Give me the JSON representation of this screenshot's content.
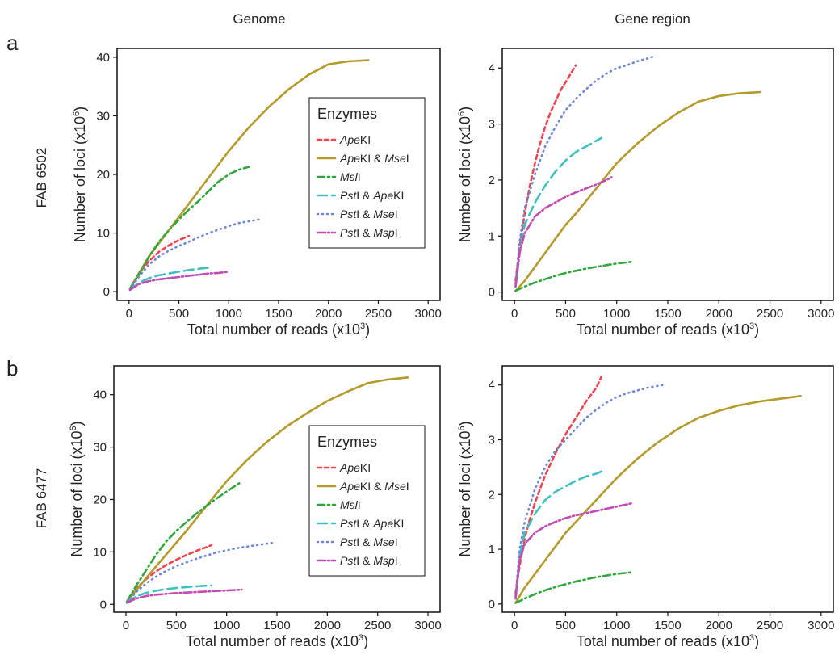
{
  "columns": [
    "Genome",
    "Gene  region"
  ],
  "rows": [
    {
      "letter": "a",
      "label": "FAB 6502"
    },
    {
      "letter": "b",
      "label": "FAB 6477"
    }
  ],
  "legend": {
    "title": "Enzymes",
    "entries": [
      {
        "parts": [
          [
            "Ape",
            true
          ],
          [
            "KI",
            false
          ]
        ],
        "color": "#f0434f",
        "dash": "5,4"
      },
      {
        "parts": [
          [
            "Ape",
            true
          ],
          [
            "KI & ",
            false
          ],
          [
            "Mse",
            true
          ],
          [
            "I",
            false
          ]
        ],
        "color": "#b39a2b",
        "dash": ""
      },
      {
        "parts": [
          [
            "Msl",
            true
          ],
          [
            "I",
            false
          ]
        ],
        "color": "#31a63b",
        "dash": "9,4,2,4"
      },
      {
        "parts": [
          [
            "Pst",
            true
          ],
          [
            "I & ",
            false
          ],
          [
            "Ape",
            true
          ],
          [
            "KI",
            false
          ]
        ],
        "color": "#3fc0c0",
        "dash": "12,6"
      },
      {
        "parts": [
          [
            "Pst",
            true
          ],
          [
            "I & ",
            false
          ],
          [
            "Mse",
            true
          ],
          [
            "I",
            false
          ]
        ],
        "color": "#6e86d6",
        "dash": "1,5"
      },
      {
        "parts": [
          [
            "Pst",
            true
          ],
          [
            "I & ",
            false
          ],
          [
            "Msp",
            true
          ],
          [
            "I",
            false
          ]
        ],
        "color": "#c24ab3",
        "dash": "10,3,2,3"
      }
    ]
  },
  "chart_data": [
    {
      "type": "line",
      "panel": "a-genome",
      "xlabel": "Total number of reads (x10^3)",
      "ylabel": "Number of loci (x10^6)",
      "xlim": [
        -120,
        3120
      ],
      "ylim": [
        -1.5,
        41.5
      ],
      "xticks": [
        0,
        500,
        1000,
        1500,
        2000,
        2500,
        3000
      ],
      "yticks": [
        0,
        10,
        20,
        30,
        40
      ],
      "legend": true,
      "series": [
        {
          "name": "ApeKI",
          "x": [
            10,
            100,
            200,
            300,
            400,
            500,
            600
          ],
          "y": [
            0.5,
            3.2,
            5.2,
            6.8,
            7.9,
            8.8,
            9.5
          ]
        },
        {
          "name": "ApeKI & MseI",
          "x": [
            10,
            200,
            400,
            600,
            800,
            1000,
            1200,
            1400,
            1600,
            1800,
            2000,
            2200,
            2400
          ],
          "y": [
            0.5,
            6,
            10.5,
            15,
            19.5,
            24,
            28,
            31.5,
            34.5,
            37,
            38.8,
            39.3,
            39.5
          ]
        },
        {
          "name": "MslI",
          "x": [
            10,
            100,
            200,
            300,
            400,
            500,
            600,
            700,
            800,
            900,
            1000,
            1100,
            1200
          ],
          "y": [
            0.5,
            3,
            6,
            8.5,
            10.5,
            12.3,
            14,
            15.5,
            17.2,
            18.8,
            20,
            20.8,
            21.3
          ]
        },
        {
          "name": "PstI & ApeKI",
          "x": [
            10,
            100,
            200,
            300,
            400,
            500,
            600,
            700,
            800
          ],
          "y": [
            0.3,
            1.5,
            2.3,
            2.8,
            3.1,
            3.4,
            3.7,
            3.9,
            4.1
          ]
        },
        {
          "name": "PstI & MseI",
          "x": [
            10,
            100,
            200,
            300,
            400,
            500,
            600,
            700,
            800,
            900,
            1000,
            1100,
            1200,
            1300
          ],
          "y": [
            0.4,
            2.6,
            4.6,
            6,
            7,
            7.8,
            8.5,
            9.3,
            10,
            10.6,
            11.2,
            11.7,
            12,
            12.3
          ]
        },
        {
          "name": "PstI & MspI",
          "x": [
            10,
            100,
            200,
            300,
            400,
            500,
            600,
            700,
            800,
            900,
            1000
          ],
          "y": [
            0.3,
            1.3,
            1.8,
            2.1,
            2.3,
            2.5,
            2.7,
            2.9,
            3.1,
            3.2,
            3.4
          ]
        }
      ]
    },
    {
      "type": "line",
      "panel": "a-gene-region",
      "xlabel": "Total number of reads (x10^3)",
      "ylabel": "Number of loci (x10^6)",
      "xlim": [
        -120,
        3120
      ],
      "ylim": [
        -0.15,
        4.35
      ],
      "xticks": [
        0,
        500,
        1000,
        1500,
        2000,
        2500,
        3000
      ],
      "yticks": [
        0,
        1,
        2,
        3,
        4
      ],
      "legend": false,
      "series": [
        {
          "name": "ApeKI",
          "x": [
            10,
            50,
            100,
            150,
            200,
            250,
            300,
            350,
            400,
            450,
            500,
            550,
            600
          ],
          "y": [
            0.2,
            0.8,
            1.4,
            1.9,
            2.3,
            2.65,
            2.95,
            3.2,
            3.4,
            3.6,
            3.75,
            3.9,
            4.05
          ]
        },
        {
          "name": "ApeKI & MseI",
          "x": [
            10,
            100,
            200,
            300,
            400,
            500,
            600,
            800,
            1000,
            1200,
            1400,
            1600,
            1800,
            2000,
            2200,
            2400
          ],
          "y": [
            0.02,
            0.2,
            0.45,
            0.7,
            0.95,
            1.2,
            1.4,
            1.85,
            2.3,
            2.65,
            2.95,
            3.2,
            3.4,
            3.5,
            3.55,
            3.57
          ]
        },
        {
          "name": "MslI",
          "x": [
            10,
            100,
            200,
            300,
            400,
            500,
            600,
            700,
            800,
            900,
            1000,
            1100,
            1150
          ],
          "y": [
            0.02,
            0.1,
            0.17,
            0.23,
            0.29,
            0.34,
            0.38,
            0.42,
            0.45,
            0.48,
            0.51,
            0.53,
            0.54
          ]
        },
        {
          "name": "PstI & ApeKI",
          "x": [
            10,
            50,
            100,
            200,
            300,
            400,
            500,
            600,
            700,
            800,
            850
          ],
          "y": [
            0.1,
            0.7,
            1.2,
            1.6,
            1.9,
            2.15,
            2.35,
            2.5,
            2.6,
            2.7,
            2.75
          ]
        },
        {
          "name": "PstI & MseI",
          "x": [
            10,
            50,
            100,
            200,
            300,
            400,
            500,
            600,
            700,
            800,
            900,
            1000,
            1100,
            1200,
            1300,
            1350
          ],
          "y": [
            0.15,
            0.9,
            1.5,
            2.1,
            2.6,
            2.95,
            3.25,
            3.45,
            3.62,
            3.78,
            3.9,
            4.0,
            4.05,
            4.12,
            4.17,
            4.2
          ]
        },
        {
          "name": "PstI & MspI",
          "x": [
            10,
            50,
            100,
            200,
            300,
            400,
            500,
            600,
            700,
            800,
            900,
            950
          ],
          "y": [
            0.1,
            0.7,
            1.05,
            1.35,
            1.5,
            1.6,
            1.7,
            1.78,
            1.85,
            1.92,
            2.0,
            2.05
          ]
        }
      ]
    },
    {
      "type": "line",
      "panel": "b-genome",
      "xlabel": "Total number of reads (x10^3)",
      "ylabel": "Number of loci (x10^6)",
      "xlim": [
        -120,
        3120
      ],
      "ylim": [
        -1.5,
        45.5
      ],
      "xticks": [
        0,
        500,
        1000,
        1500,
        2000,
        2500,
        3000
      ],
      "yticks": [
        0,
        10,
        20,
        30,
        40
      ],
      "legend": true,
      "series": [
        {
          "name": "ApeKI",
          "x": [
            10,
            100,
            200,
            300,
            400,
            500,
            600,
            700,
            800,
            850
          ],
          "y": [
            0.5,
            3,
            4.8,
            6.3,
            7.5,
            8.5,
            9.4,
            10.2,
            10.9,
            11.3
          ]
        },
        {
          "name": "ApeKI & MseI",
          "x": [
            10,
            200,
            400,
            600,
            800,
            1000,
            1200,
            1400,
            1600,
            1800,
            2000,
            2200,
            2400,
            2600,
            2800
          ],
          "y": [
            0.5,
            5,
            9.5,
            14,
            18.8,
            23.5,
            27.5,
            31,
            34,
            36.5,
            38.8,
            40.6,
            42.2,
            42.9,
            43.3
          ]
        },
        {
          "name": "MslI",
          "x": [
            10,
            100,
            200,
            300,
            400,
            500,
            600,
            700,
            800,
            900,
            1000,
            1100,
            1150
          ],
          "y": [
            0.5,
            3.5,
            6.5,
            9.5,
            12,
            14,
            15.7,
            17.3,
            18.8,
            20.2,
            21.5,
            22.8,
            23.4
          ]
        },
        {
          "name": "PstI & ApeKI",
          "x": [
            10,
            100,
            200,
            300,
            400,
            500,
            600,
            700,
            800,
            850
          ],
          "y": [
            0.3,
            1.5,
            2.2,
            2.6,
            2.9,
            3.1,
            3.3,
            3.45,
            3.55,
            3.6
          ]
        },
        {
          "name": "PstI & MseI",
          "x": [
            10,
            100,
            200,
            300,
            400,
            500,
            600,
            700,
            800,
            900,
            1000,
            1100,
            1200,
            1300,
            1450
          ],
          "y": [
            0.4,
            2.3,
            4,
            5.3,
            6.4,
            7.3,
            8,
            8.7,
            9.3,
            9.9,
            10.3,
            10.7,
            11,
            11.3,
            11.7
          ]
        },
        {
          "name": "PstI & MspI",
          "x": [
            10,
            100,
            200,
            300,
            400,
            500,
            600,
            700,
            800,
            900,
            1000,
            1100,
            1150
          ],
          "y": [
            0.3,
            1.1,
            1.6,
            1.85,
            2,
            2.15,
            2.25,
            2.35,
            2.45,
            2.55,
            2.65,
            2.75,
            2.8
          ]
        }
      ]
    },
    {
      "type": "line",
      "panel": "b-gene-region",
      "xlabel": "Total number of reads (x10^3)",
      "ylabel": "Number of loci (x10^6)",
      "xlim": [
        -120,
        3120
      ],
      "ylim": [
        -0.15,
        4.35
      ],
      "xticks": [
        0,
        500,
        1000,
        1500,
        2000,
        2500,
        3000
      ],
      "yticks": [
        0,
        1,
        2,
        3,
        4
      ],
      "legend": false,
      "series": [
        {
          "name": "ApeKI",
          "x": [
            10,
            50,
            100,
            150,
            200,
            300,
            400,
            500,
            600,
            700,
            800,
            850
          ],
          "y": [
            0.2,
            0.7,
            1.2,
            1.55,
            1.85,
            2.35,
            2.75,
            3.1,
            3.4,
            3.7,
            3.95,
            4.15
          ]
        },
        {
          "name": "ApeKI & MseI",
          "x": [
            10,
            100,
            200,
            300,
            400,
            500,
            600,
            800,
            1000,
            1200,
            1400,
            1600,
            1800,
            2000,
            2200,
            2400,
            2600,
            2800
          ],
          "y": [
            0.02,
            0.3,
            0.55,
            0.8,
            1.05,
            1.3,
            1.5,
            1.9,
            2.3,
            2.65,
            2.95,
            3.2,
            3.4,
            3.53,
            3.63,
            3.7,
            3.75,
            3.8
          ]
        },
        {
          "name": "MslI",
          "x": [
            10,
            100,
            200,
            300,
            400,
            500,
            600,
            700,
            800,
            900,
            1000,
            1100,
            1150
          ],
          "y": [
            0.02,
            0.1,
            0.18,
            0.25,
            0.31,
            0.36,
            0.41,
            0.45,
            0.49,
            0.52,
            0.55,
            0.57,
            0.58
          ]
        },
        {
          "name": "PstI & ApeKI",
          "x": [
            10,
            50,
            100,
            200,
            300,
            400,
            500,
            600,
            700,
            800,
            850
          ],
          "y": [
            0.1,
            0.9,
            1.3,
            1.65,
            1.9,
            2.05,
            2.15,
            2.25,
            2.33,
            2.38,
            2.42
          ]
        },
        {
          "name": "PstI & MseI",
          "x": [
            10,
            50,
            100,
            200,
            300,
            400,
            500,
            600,
            700,
            800,
            900,
            1000,
            1100,
            1200,
            1300,
            1450
          ],
          "y": [
            0.15,
            1.0,
            1.5,
            2.1,
            2.5,
            2.8,
            3.0,
            3.2,
            3.4,
            3.55,
            3.68,
            3.78,
            3.85,
            3.9,
            3.95,
            4.0
          ]
        },
        {
          "name": "PstI & MspI",
          "x": [
            10,
            50,
            100,
            200,
            300,
            400,
            500,
            600,
            700,
            800,
            900,
            1000,
            1100,
            1150
          ],
          "y": [
            0.1,
            0.8,
            1.1,
            1.3,
            1.42,
            1.5,
            1.57,
            1.62,
            1.66,
            1.7,
            1.74,
            1.78,
            1.82,
            1.84
          ]
        }
      ]
    }
  ]
}
